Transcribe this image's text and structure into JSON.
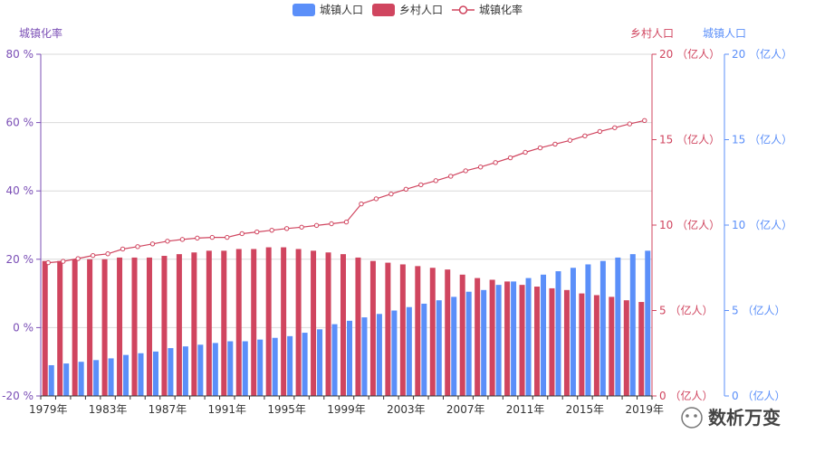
{
  "chart_data": {
    "type": "bar+line",
    "legend": [
      {
        "name": "城镇人口",
        "kind": "bar",
        "color": "#5b8ff9"
      },
      {
        "name": "乡村人口",
        "kind": "bar",
        "color": "#d0455f"
      },
      {
        "name": "城镇化率",
        "kind": "line",
        "color": "#d0455f"
      }
    ],
    "categories": [
      "1979年",
      "1980年",
      "1981年",
      "1982年",
      "1983年",
      "1984年",
      "1985年",
      "1986年",
      "1987年",
      "1988年",
      "1989年",
      "1990年",
      "1991年",
      "1992年",
      "1993年",
      "1994年",
      "1995年",
      "1996年",
      "1997年",
      "1998年",
      "1999年",
      "2000年",
      "2001年",
      "2002年",
      "2003年",
      "2004年",
      "2005年",
      "2006年",
      "2007年",
      "2008年",
      "2009年",
      "2010年",
      "2011年",
      "2012年",
      "2013年",
      "2014年",
      "2015年",
      "2016年",
      "2017年",
      "2018年",
      "2019年"
    ],
    "x_tick_labels": [
      "1979年",
      "1983年",
      "1987年",
      "1991年",
      "1995年",
      "1999年",
      "2003年",
      "2007年",
      "2011年",
      "2015年",
      "2019年"
    ],
    "series": [
      {
        "name": "城镇人口",
        "axis": "right-outer",
        "values": [
          1.8,
          1.9,
          2.0,
          2.1,
          2.2,
          2.4,
          2.5,
          2.6,
          2.8,
          2.9,
          3.0,
          3.1,
          3.2,
          3.2,
          3.3,
          3.4,
          3.5,
          3.7,
          3.9,
          4.2,
          4.4,
          4.6,
          4.8,
          5.0,
          5.2,
          5.4,
          5.6,
          5.8,
          6.1,
          6.2,
          6.5,
          6.7,
          6.9,
          7.1,
          7.3,
          7.5,
          7.7,
          7.9,
          8.1,
          8.3,
          8.5
        ]
      },
      {
        "name": "乡村人口",
        "axis": "right-inner",
        "values": [
          7.9,
          7.9,
          8.0,
          8.0,
          8.0,
          8.1,
          8.1,
          8.1,
          8.2,
          8.3,
          8.4,
          8.5,
          8.5,
          8.6,
          8.6,
          8.7,
          8.7,
          8.6,
          8.5,
          8.4,
          8.3,
          8.1,
          7.9,
          7.8,
          7.7,
          7.6,
          7.5,
          7.4,
          7.1,
          6.9,
          6.8,
          6.7,
          6.5,
          6.4,
          6.3,
          6.2,
          6.0,
          5.9,
          5.8,
          5.6,
          5.5
        ]
      },
      {
        "name": "城镇化率",
        "axis": "left",
        "values": [
          19.0,
          19.4,
          20.2,
          21.1,
          21.6,
          23.0,
          23.7,
          24.5,
          25.3,
          25.8,
          26.2,
          26.4,
          26.4,
          27.5,
          28.0,
          28.5,
          29.0,
          29.4,
          29.9,
          30.4,
          30.9,
          36.2,
          37.7,
          39.1,
          40.5,
          41.8,
          43.0,
          44.3,
          45.9,
          47.0,
          48.3,
          49.7,
          51.3,
          52.6,
          53.7,
          54.8,
          56.1,
          57.4,
          58.5,
          59.6,
          60.6
        ]
      }
    ],
    "y_left": {
      "title": "城镇化率",
      "min": -20,
      "max": 80,
      "step": 20,
      "ticks": [
        "-20 %",
        "0 %",
        "20 %",
        "40 %",
        "60 %",
        "80 %"
      ],
      "color": "#7b4fb6"
    },
    "y_right_inner": {
      "title": "乡村人口",
      "min": 0,
      "max": 20,
      "step": 5,
      "ticks": [
        "0 （亿人）",
        "5 （亿人）",
        "10 （亿人）",
        "15 （亿人）",
        "20 （亿人）"
      ],
      "color": "#d0455f"
    },
    "y_right_outer": {
      "title": "城镇人口",
      "min": 0,
      "max": 20,
      "step": 5,
      "ticks": [
        "0 （亿人）",
        "5 （亿人）",
        "10 （亿人）",
        "15 （亿人）",
        "20 （亿人）"
      ],
      "color": "#5b8ff9"
    },
    "grid": true
  },
  "watermark": {
    "text": "数析万变"
  }
}
